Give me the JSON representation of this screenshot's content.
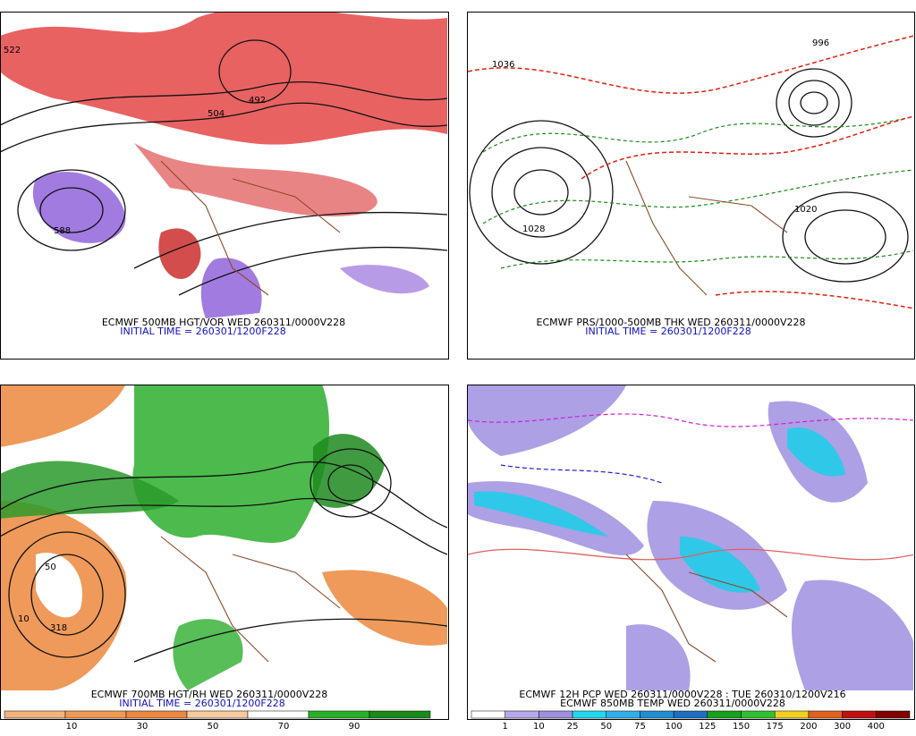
{
  "panels": [
    {
      "caption": "ECMWF 500MB HGT/VOR WED 260311/0000V228",
      "subcaption": "INITIAL TIME = 260301/1200F228",
      "map_labels": [
        "588",
        "522",
        "492",
        "504"
      ]
    },
    {
      "caption": "ECMWF PRS/1000-500MB THK WED 260311/0000V228",
      "subcaption": "INITIAL TIME = 260301/1200F228",
      "map_labels": [
        "1028",
        "1020",
        "1036",
        "996"
      ]
    },
    {
      "caption": "ECMWF 700MB HGT/RH WED 260311/0000V228",
      "subcaption": "INITIAL TIME = 260301/1200F228",
      "map_labels": [
        "318",
        "10",
        "50"
      ],
      "colorbar": [
        10,
        30,
        50,
        70,
        90
      ]
    },
    {
      "caption": "ECMWF 12H PCP WED 260311/0000V228 : TUE 260310/1200V216",
      "subcaption": "ECMWF 850MB TEMP WED 260311/0000V228",
      "colorbar": [
        1,
        10,
        25,
        50,
        75,
        100,
        125,
        150,
        175,
        200,
        300,
        400
      ]
    }
  ]
}
